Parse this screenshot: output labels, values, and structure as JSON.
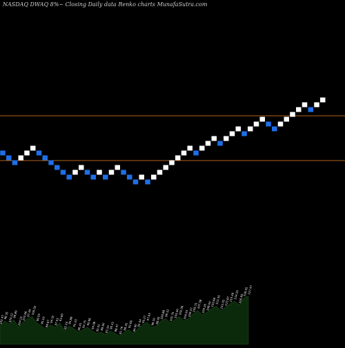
{
  "header": {
    "title": "NASDAQ DWAQ 8%~  Closing Daily data  Renko  charts MunafaSutra.com"
  },
  "colors": {
    "background": "#000000",
    "up_brick": "#ffffff",
    "down_brick": "#1e6fe8",
    "reference_line": "#b5651d",
    "volume_fill": "#0b2a0b",
    "volume_label": "#ffffff"
  },
  "chart_data": [
    {
      "type": "renko",
      "reference_lines": [
        0.2,
        0.8
      ],
      "bricks": [
        {
          "dir": "down",
          "level": 0
        },
        {
          "dir": "down",
          "level": -1
        },
        {
          "dir": "down",
          "level": -2
        },
        {
          "dir": "up",
          "level": -1
        },
        {
          "dir": "up",
          "level": 0
        },
        {
          "dir": "up",
          "level": 1
        },
        {
          "dir": "down",
          "level": 0
        },
        {
          "dir": "down",
          "level": -1
        },
        {
          "dir": "down",
          "level": -2
        },
        {
          "dir": "down",
          "level": -3
        },
        {
          "dir": "down",
          "level": -4
        },
        {
          "dir": "down",
          "level": -5
        },
        {
          "dir": "up",
          "level": -4
        },
        {
          "dir": "up",
          "level": -3
        },
        {
          "dir": "down",
          "level": -4
        },
        {
          "dir": "down",
          "level": -5
        },
        {
          "dir": "up",
          "level": -4
        },
        {
          "dir": "down",
          "level": -5
        },
        {
          "dir": "up",
          "level": -4
        },
        {
          "dir": "up",
          "level": -3
        },
        {
          "dir": "down",
          "level": -4
        },
        {
          "dir": "down",
          "level": -5
        },
        {
          "dir": "down",
          "level": -6
        },
        {
          "dir": "up",
          "level": -5
        },
        {
          "dir": "down",
          "level": -6
        },
        {
          "dir": "up",
          "level": -5
        },
        {
          "dir": "up",
          "level": -4
        },
        {
          "dir": "up",
          "level": -3
        },
        {
          "dir": "up",
          "level": -2
        },
        {
          "dir": "up",
          "level": -1
        },
        {
          "dir": "up",
          "level": 0
        },
        {
          "dir": "up",
          "level": 1
        },
        {
          "dir": "down",
          "level": 0
        },
        {
          "dir": "up",
          "level": 1
        },
        {
          "dir": "up",
          "level": 2
        },
        {
          "dir": "up",
          "level": 3
        },
        {
          "dir": "down",
          "level": 2
        },
        {
          "dir": "up",
          "level": 3
        },
        {
          "dir": "up",
          "level": 4
        },
        {
          "dir": "up",
          "level": 5
        },
        {
          "dir": "down",
          "level": 4
        },
        {
          "dir": "up",
          "level": 5
        },
        {
          "dir": "up",
          "level": 6
        },
        {
          "dir": "up",
          "level": 7
        },
        {
          "dir": "down",
          "level": 6
        },
        {
          "dir": "down",
          "level": 5
        },
        {
          "dir": "up",
          "level": 6
        },
        {
          "dir": "up",
          "level": 7
        },
        {
          "dir": "up",
          "level": 8
        },
        {
          "dir": "up",
          "level": 9
        },
        {
          "dir": "up",
          "level": 10
        },
        {
          "dir": "down",
          "level": 9
        },
        {
          "dir": "up",
          "level": 10
        },
        {
          "dir": "up",
          "level": 11
        }
      ]
    },
    {
      "type": "area",
      "name_hidden": true,
      "values": [
        0.3,
        0.38,
        0.33,
        0.4,
        0.28,
        0.36,
        0.42,
        0.45,
        0.35,
        0.3,
        0.25,
        0.32,
        0.28,
        0.35,
        0.22,
        0.3,
        0.26,
        0.2,
        0.24,
        0.28,
        0.22,
        0.18,
        0.2,
        0.16,
        0.22,
        0.18,
        0.14,
        0.2,
        0.24,
        0.18,
        0.26,
        0.32,
        0.36,
        0.28,
        0.3,
        0.38,
        0.42,
        0.35,
        0.4,
        0.45,
        0.38,
        0.42,
        0.5,
        0.55,
        0.48,
        0.52,
        0.58,
        0.62,
        0.55,
        0.6,
        0.66,
        0.7,
        0.64,
        0.75,
        0.78
      ],
      "labels": [
        "102.47",
        "98.35",
        "103.12",
        "99.80",
        "104.21",
        "101.66",
        "97.44",
        "100.02",
        "96.55",
        "95.10",
        "98.87",
        "94.32",
        "97.03",
        "93.60",
        "92.14",
        "95.88",
        "91.20",
        "96.41",
        "93.75",
        "90.66",
        "94.08",
        "92.51",
        "89.90",
        "93.33",
        "90.12",
        "88.47",
        "91.79",
        "89.35",
        "92.66",
        "94.90",
        "91.44",
        "95.27",
        "97.63",
        "96.10",
        "98.45",
        "100.88",
        "99.12",
        "101.75",
        "103.40",
        "102.06",
        "104.93",
        "106.37",
        "105.11",
        "107.58",
        "109.20",
        "108.04",
        "110.66",
        "112.35",
        "111.02",
        "113.87",
        "115.49",
        "114.20",
        "116.83",
        "118.55",
        "117.47"
      ]
    }
  ]
}
